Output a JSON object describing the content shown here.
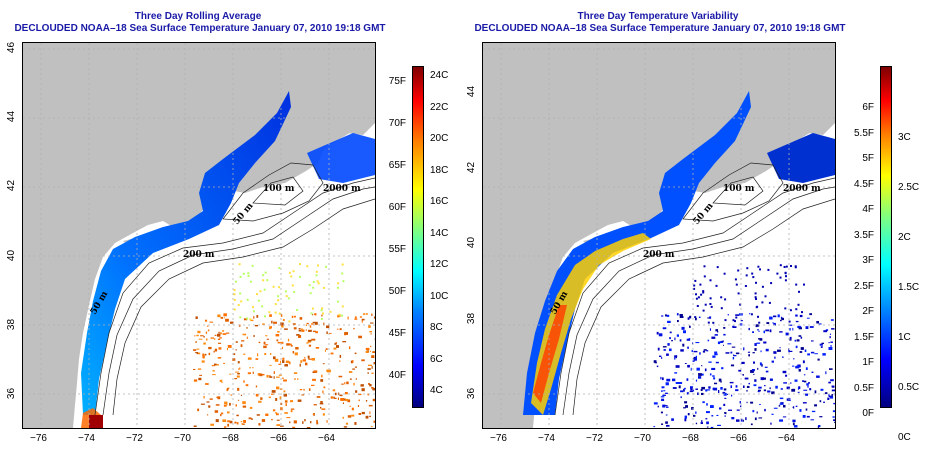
{
  "panels": [
    {
      "title_line1": "Three Day Rolling Average",
      "title_line2": "DECLOUDED NOAA–18 Sea Surface Temperature January 07, 2010 19:18 GMT",
      "x_ticks": [
        "−76",
        "−74",
        "−72",
        "−70",
        "−68",
        "−66",
        "−64"
      ],
      "y_ticks": [
        "46",
        "44",
        "42",
        "40",
        "38",
        "36"
      ],
      "contour_labels": [
        "2000 m",
        "100 m",
        "50 m",
        "200 m",
        "50 m"
      ],
      "colorbar_left_labels": [
        "75F",
        "70F",
        "65F",
        "60F",
        "55F",
        "50F",
        "45F",
        "40F"
      ],
      "colorbar_right_labels": [
        "24C",
        "22C",
        "20C",
        "18C",
        "16C",
        "14C",
        "12C",
        "10C",
        "8C",
        "6C",
        "4C"
      ]
    },
    {
      "title_line1": "Three Day Temperature Variability",
      "title_line2": "DECLOUDED NOAA–18 Sea Surface Temperature January 07, 2010 19:18 GMT",
      "x_ticks": [
        "−76",
        "−74",
        "−72",
        "−70",
        "−68",
        "−66",
        "−64"
      ],
      "y_ticks": [
        "44",
        "42",
        "40",
        "38",
        "36"
      ],
      "contour_labels": [
        "2000 m",
        "100 m",
        "50 m",
        "200 m",
        "50 m"
      ],
      "colorbar_left_labels": [
        "6F",
        "5.5F",
        "5F",
        "4.5F",
        "4F",
        "3.5F",
        "3F",
        "2.5F",
        "2F",
        "1.5F",
        "1F",
        "0.5F",
        "0F"
      ],
      "colorbar_right_labels": [
        "3C",
        "2.5C",
        "2C",
        "1.5C",
        "1C",
        "0.5C",
        "0C"
      ]
    }
  ],
  "colors": {
    "title": "#1a1aa8",
    "land": "#c0c0c0",
    "ocean_nodata": "#ffffff",
    "colormap": [
      "#00007f",
      "#0000ff",
      "#0080ff",
      "#00ffff",
      "#80ff80",
      "#ffff00",
      "#ff8000",
      "#ff0000",
      "#7f0000"
    ]
  }
}
